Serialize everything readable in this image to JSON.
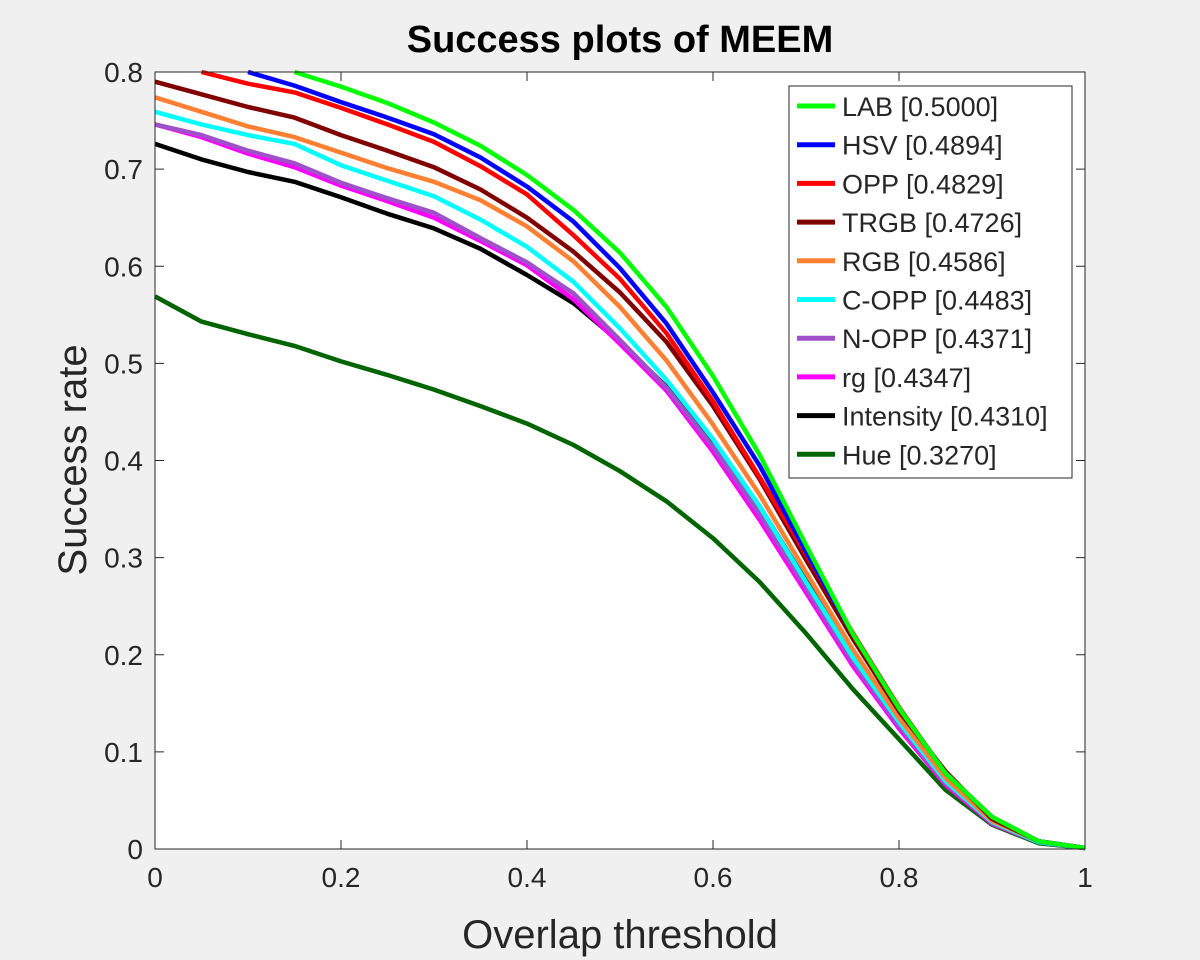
{
  "chart_data": {
    "type": "line",
    "title": "Success plots of MEEM",
    "xlabel": "Overlap threshold",
    "ylabel": "Success rate",
    "xlim": [
      0,
      1
    ],
    "ylim": [
      0,
      0.8
    ],
    "xticks": [
      "0",
      "0.2",
      "0.4",
      "0.6",
      "0.8",
      "1"
    ],
    "yticks": [
      "0",
      "0.1",
      "0.2",
      "0.3",
      "0.4",
      "0.5",
      "0.6",
      "0.7",
      "0.8"
    ],
    "legend_position": "top-right",
    "grid": false,
    "x": [
      0,
      0.05,
      0.1,
      0.15,
      0.2,
      0.25,
      0.3,
      0.35,
      0.4,
      0.45,
      0.5,
      0.55,
      0.6,
      0.65,
      0.7,
      0.75,
      0.8,
      0.85,
      0.9,
      0.95,
      1
    ],
    "series": [
      {
        "name": "LAB [0.5000]",
        "color": "#00ff00",
        "values": [
          null,
          null,
          null,
          0.8,
          0.785,
          0.768,
          0.748,
          0.724,
          0.694,
          0.658,
          0.614,
          0.558,
          0.487,
          0.406,
          0.313,
          0.222,
          0.145,
          0.078,
          0.033,
          0.008,
          0.001
        ]
      },
      {
        "name": "HSV [0.4894]",
        "color": "#0000ff",
        "values": [
          null,
          null,
          0.8,
          0.786,
          0.769,
          0.753,
          0.736,
          0.712,
          0.682,
          0.646,
          0.598,
          0.541,
          0.47,
          0.395,
          0.306,
          0.222,
          0.145,
          0.078,
          0.033,
          0.008,
          0.001
        ]
      },
      {
        "name": "OPP [0.4829]",
        "color": "#ff0000",
        "values": [
          null,
          0.8,
          0.788,
          0.779,
          0.763,
          0.746,
          0.728,
          0.703,
          0.674,
          0.632,
          0.587,
          0.531,
          0.461,
          0.383,
          0.304,
          0.223,
          0.146,
          0.078,
          0.033,
          0.008,
          0.001
        ]
      },
      {
        "name": "TRGB [0.4726]",
        "color": "#800000",
        "values": [
          0.79,
          0.777,
          0.764,
          0.753,
          0.735,
          0.719,
          0.702,
          0.679,
          0.65,
          0.615,
          0.573,
          0.522,
          0.456,
          0.381,
          0.298,
          0.217,
          0.142,
          0.08,
          0.031,
          0.008,
          0.001
        ]
      },
      {
        "name": "RGB [0.4586]",
        "color": "#ff8033",
        "values": [
          0.774,
          0.759,
          0.744,
          0.733,
          0.717,
          0.701,
          0.687,
          0.668,
          0.641,
          0.605,
          0.558,
          0.503,
          0.437,
          0.365,
          0.285,
          0.206,
          0.135,
          0.073,
          0.029,
          0.008,
          0.001
        ]
      },
      {
        "name": "C-OPP [0.4483]",
        "color": "#00ffff",
        "values": [
          0.759,
          0.746,
          0.735,
          0.726,
          0.704,
          0.688,
          0.672,
          0.648,
          0.62,
          0.584,
          0.536,
          0.483,
          0.422,
          0.353,
          0.275,
          0.198,
          0.131,
          0.07,
          0.028,
          0.007,
          0.001
        ]
      },
      {
        "name": "N-OPP [0.4371]",
        "color": "#a050c8",
        "values": [
          0.746,
          0.735,
          0.719,
          0.706,
          0.686,
          0.67,
          0.655,
          0.629,
          0.604,
          0.572,
          0.524,
          0.475,
          0.414,
          0.345,
          0.269,
          0.193,
          0.127,
          0.068,
          0.027,
          0.007,
          0.001
        ]
      },
      {
        "name": "rg [0.4347]",
        "color": "#ff00ff",
        "values": [
          0.746,
          0.733,
          0.716,
          0.702,
          0.683,
          0.667,
          0.65,
          0.626,
          0.601,
          0.566,
          0.52,
          0.472,
          0.409,
          0.339,
          0.264,
          0.189,
          0.124,
          0.066,
          0.026,
          0.007,
          0.001
        ]
      },
      {
        "name": "Intensity [0.4310]",
        "color": "#000000",
        "values": [
          0.726,
          0.71,
          0.697,
          0.687,
          0.671,
          0.654,
          0.639,
          0.618,
          0.591,
          0.562,
          0.522,
          0.476,
          0.417,
          0.353,
          0.276,
          0.203,
          0.138,
          0.073,
          0.029,
          0.007,
          0.001
        ]
      },
      {
        "name": "Hue [0.3270]",
        "color": "#006400",
        "values": [
          0.569,
          0.543,
          0.53,
          0.518,
          0.502,
          0.488,
          0.473,
          0.456,
          0.438,
          0.416,
          0.389,
          0.358,
          0.32,
          0.275,
          0.222,
          0.165,
          0.113,
          0.061,
          0.025,
          0.006,
          0.001
        ]
      }
    ]
  }
}
